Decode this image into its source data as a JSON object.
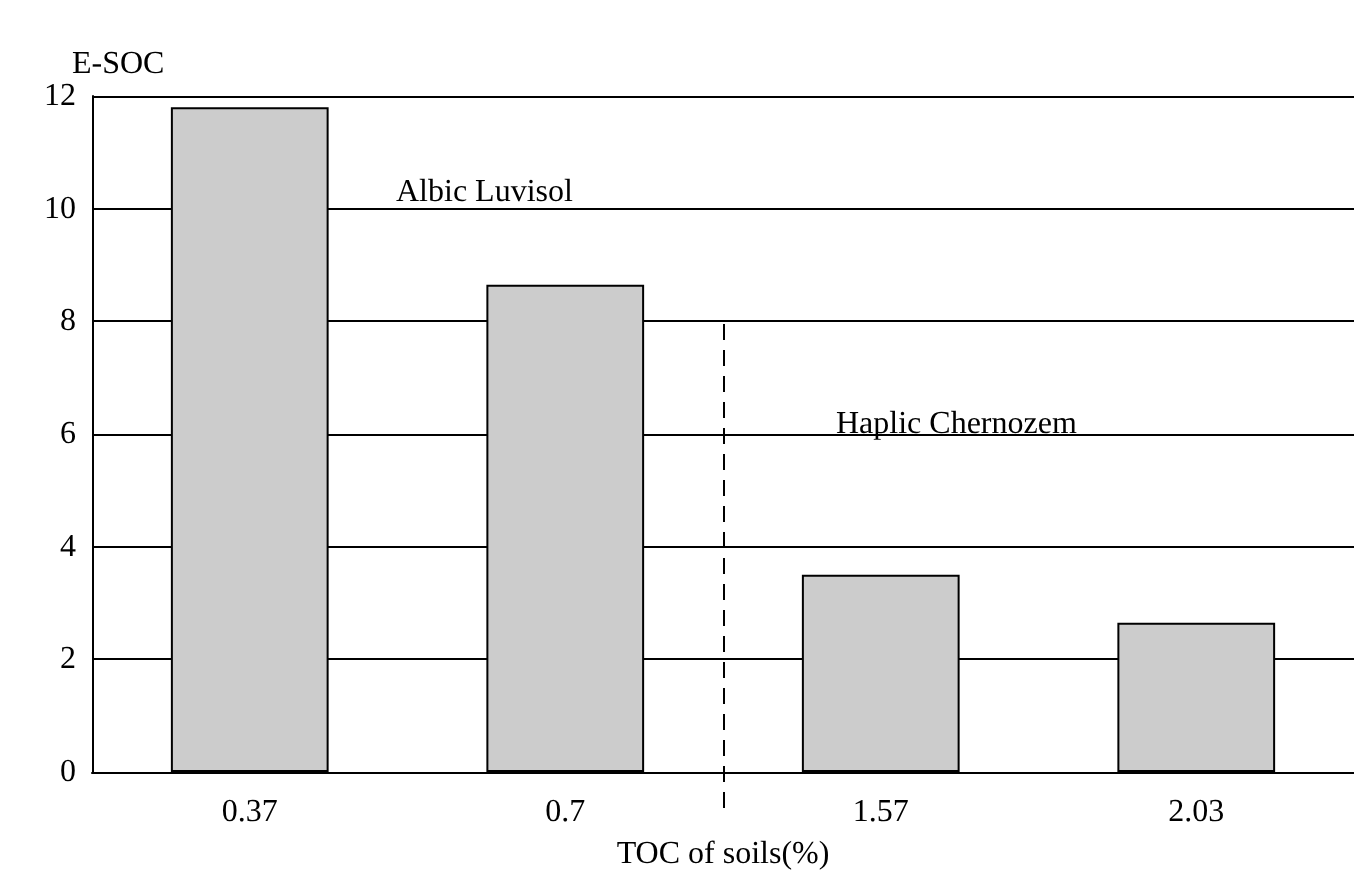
{
  "chart_data": {
    "type": "bar",
    "xlabel": "TOC of soils(%)",
    "ylabel": "E-SOC",
    "categories": [
      "0.37",
      "0.7",
      "1.57",
      "2.03"
    ],
    "values": [
      11.8,
      8.65,
      3.5,
      2.65
    ],
    "color": "#cccccc",
    "ylim": [
      0,
      12
    ],
    "yticks": [
      0,
      2,
      4,
      6,
      8,
      10,
      12
    ],
    "grid": "y",
    "annotations": [
      "Albic Luvisol",
      "Haplic Chernozem"
    ]
  }
}
